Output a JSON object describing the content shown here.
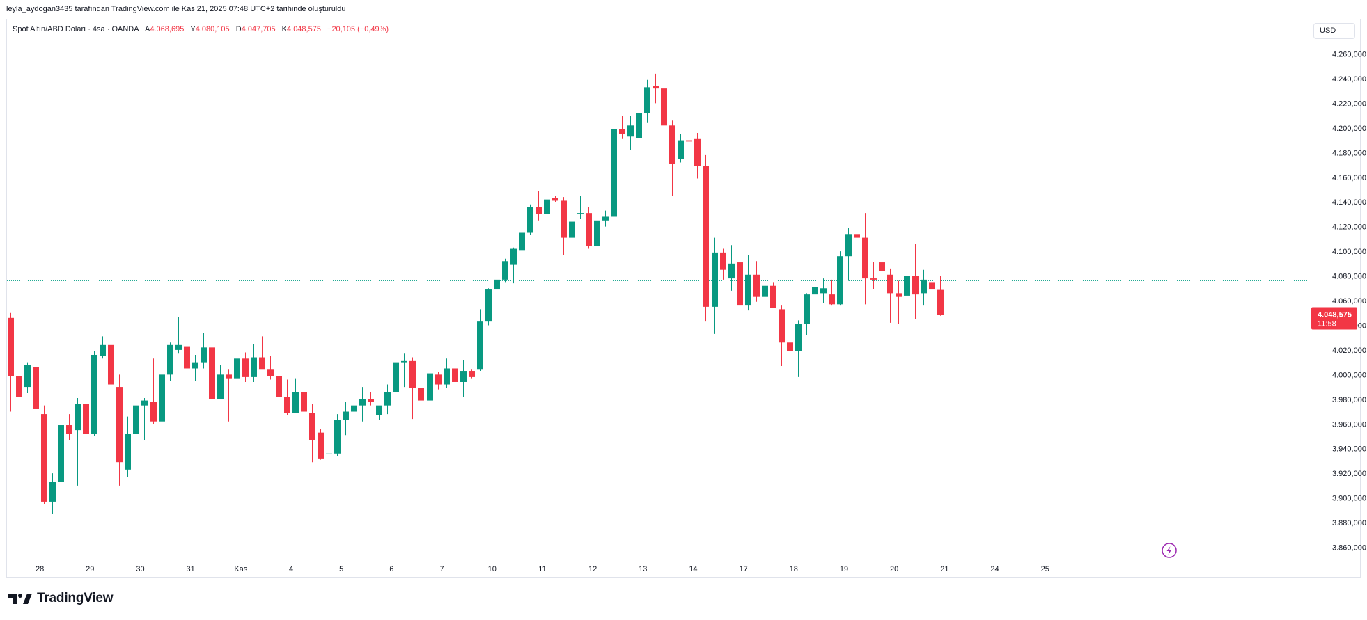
{
  "header": {
    "attribution": "leyla_aydogan3435 tarafından TradingView.com ile Kas 21, 2025 07:48 UTC+2 tarihinde oluşturuldu"
  },
  "legend": {
    "symbol": "Spot Altın/ABD Doları · 4sa · OANDA",
    "open_label": "A",
    "open_value": "4.068,695",
    "high_label": "Y",
    "high_value": "4.080,105",
    "low_label": "D",
    "low_value": "4.047,705",
    "close_label": "K",
    "close_value": "4.048,575",
    "change": "−20,105 (−0,49%)"
  },
  "currency": "USD",
  "price_label": {
    "price": "4.048,575",
    "countdown": "11:58"
  },
  "brand": {
    "name": "TradingView"
  },
  "colors": {
    "up": "#089981",
    "down": "#f23645",
    "reference_line": "#22ab94",
    "grid": "#f0f3fa"
  },
  "chart_data": {
    "type": "candlestick",
    "ylim": [
      3850000,
      4270000
    ],
    "y_ticks": [
      3860000,
      3880000,
      3900000,
      3920000,
      3940000,
      3960000,
      3980000,
      4000000,
      4020000,
      4040000,
      4060000,
      4080000,
      4100000,
      4120000,
      4140000,
      4160000,
      4180000,
      4200000,
      4220000,
      4240000,
      4260000
    ],
    "y_tick_labels": [
      "3.860,000",
      "3.880,000",
      "3.900,000",
      "3.920,000",
      "3.940,000",
      "3.960,000",
      "3.980,000",
      "4.000,000",
      "4.020,000",
      "4.040,000",
      "4.060,000",
      "4.080,000",
      "4.100,000",
      "4.120,000",
      "4.140,000",
      "4.160,000",
      "4.180,000",
      "4.200,000",
      "4.220,000",
      "4.240,000",
      "4.260,000"
    ],
    "x_tick_labels": [
      {
        "label": "28",
        "bar": 3.5
      },
      {
        "label": "29",
        "bar": 9.5
      },
      {
        "label": "30",
        "bar": 15.5
      },
      {
        "label": "31",
        "bar": 21.5
      },
      {
        "label": "Kas",
        "bar": 27.5
      },
      {
        "label": "4",
        "bar": 33.5
      },
      {
        "label": "5",
        "bar": 39.5
      },
      {
        "label": "6",
        "bar": 45.5
      },
      {
        "label": "7",
        "bar": 51.5
      },
      {
        "label": "10",
        "bar": 57.5
      },
      {
        "label": "11",
        "bar": 63.5
      },
      {
        "label": "12",
        "bar": 69.5
      },
      {
        "label": "13",
        "bar": 75.5
      },
      {
        "label": "14",
        "bar": 81.5
      },
      {
        "label": "17",
        "bar": 87.5
      },
      {
        "label": "18",
        "bar": 93.5
      },
      {
        "label": "19",
        "bar": 99.5
      },
      {
        "label": "20",
        "bar": 105.5
      },
      {
        "label": "21",
        "bar": 111.5
      },
      {
        "label": "24",
        "bar": 117.5
      },
      {
        "label": "25",
        "bar": 123.5
      }
    ],
    "last_price": 4048575,
    "reference_price": 4076200,
    "candles": [
      {
        "o": 4046000,
        "h": 4050000,
        "l": 3970000,
        "c": 3999000
      },
      {
        "o": 3999000,
        "h": 4008000,
        "l": 3975000,
        "c": 3982000
      },
      {
        "o": 3990000,
        "h": 4010000,
        "l": 3985000,
        "c": 4008000
      },
      {
        "o": 4006000,
        "h": 4019000,
        "l": 3965000,
        "c": 3972000
      },
      {
        "o": 3968000,
        "h": 3975000,
        "l": 3895000,
        "c": 3897000
      },
      {
        "o": 3897000,
        "h": 3920000,
        "l": 3887000,
        "c": 3913000
      },
      {
        "o": 3913000,
        "h": 3966000,
        "l": 3912000,
        "c": 3959000
      },
      {
        "o": 3959000,
        "h": 3968000,
        "l": 3947000,
        "c": 3952000
      },
      {
        "o": 3955000,
        "h": 3981000,
        "l": 3910000,
        "c": 3976000
      },
      {
        "o": 3976000,
        "h": 3981000,
        "l": 3946000,
        "c": 3952000
      },
      {
        "o": 3952000,
        "h": 4019000,
        "l": 3950000,
        "c": 4016000
      },
      {
        "o": 4015000,
        "h": 4031000,
        "l": 4013000,
        "c": 4024000
      },
      {
        "o": 4024000,
        "h": 4025000,
        "l": 3990000,
        "c": 3992000
      },
      {
        "o": 3990000,
        "h": 4000000,
        "l": 3910000,
        "c": 3929000
      },
      {
        "o": 3923000,
        "h": 3966000,
        "l": 3917000,
        "c": 3952000
      },
      {
        "o": 3952000,
        "h": 3987000,
        "l": 3945000,
        "c": 3975000
      },
      {
        "o": 3975000,
        "h": 3981000,
        "l": 3947000,
        "c": 3979000
      },
      {
        "o": 3978000,
        "h": 4013000,
        "l": 3960000,
        "c": 3962000
      },
      {
        "o": 3962000,
        "h": 4004000,
        "l": 3960000,
        "c": 4000000
      },
      {
        "o": 4000000,
        "h": 4026000,
        "l": 3995000,
        "c": 4024000
      },
      {
        "o": 4020000,
        "h": 4047000,
        "l": 4017000,
        "c": 4024000
      },
      {
        "o": 4023000,
        "h": 4039000,
        "l": 3990000,
        "c": 4005000
      },
      {
        "o": 4005000,
        "h": 4016000,
        "l": 3995000,
        "c": 4010000
      },
      {
        "o": 4010000,
        "h": 4034000,
        "l": 4005000,
        "c": 4022000
      },
      {
        "o": 4022000,
        "h": 4034000,
        "l": 3970000,
        "c": 3980000
      },
      {
        "o": 3980000,
        "h": 4008000,
        "l": 3980000,
        "c": 4000000
      },
      {
        "o": 4000000,
        "h": 4004000,
        "l": 3962000,
        "c": 3997000
      },
      {
        "o": 3997000,
        "h": 4018000,
        "l": 3997000,
        "c": 4013000
      },
      {
        "o": 4013000,
        "h": 4018000,
        "l": 3994000,
        "c": 3998000
      },
      {
        "o": 3998000,
        "h": 4025000,
        "l": 3994000,
        "c": 4014000
      },
      {
        "o": 4014000,
        "h": 4031000,
        "l": 4006000,
        "c": 4004000
      },
      {
        "o": 4004000,
        "h": 4015000,
        "l": 3996000,
        "c": 3999000
      },
      {
        "o": 3999000,
        "h": 4009000,
        "l": 3980000,
        "c": 3982000
      },
      {
        "o": 3982000,
        "h": 3996000,
        "l": 3967000,
        "c": 3969000
      },
      {
        "o": 3969000,
        "h": 3997000,
        "l": 3969000,
        "c": 3986000
      },
      {
        "o": 3986000,
        "h": 3998000,
        "l": 3970000,
        "c": 3970000
      },
      {
        "o": 3969000,
        "h": 3976000,
        "l": 3929000,
        "c": 3947000
      },
      {
        "o": 3953000,
        "h": 3956000,
        "l": 3931000,
        "c": 3932000
      },
      {
        "o": 3936000,
        "h": 3942000,
        "l": 3930000,
        "c": 3936000
      },
      {
        "o": 3936000,
        "h": 3968000,
        "l": 3934000,
        "c": 3963000
      },
      {
        "o": 3963000,
        "h": 3978000,
        "l": 3951000,
        "c": 3970000
      },
      {
        "o": 3970000,
        "h": 3980000,
        "l": 3955000,
        "c": 3975000
      },
      {
        "o": 3975000,
        "h": 3990000,
        "l": 3962000,
        "c": 3980000
      },
      {
        "o": 3980000,
        "h": 3986000,
        "l": 3975000,
        "c": 3978000
      },
      {
        "o": 3967000,
        "h": 3972000,
        "l": 3963000,
        "c": 3975000
      },
      {
        "o": 3975000,
        "h": 3992000,
        "l": 3968000,
        "c": 3986000
      },
      {
        "o": 3986000,
        "h": 4012000,
        "l": 3985000,
        "c": 4010000
      },
      {
        "o": 4010000,
        "h": 4017000,
        "l": 3990000,
        "c": 4011000
      },
      {
        "o": 4011000,
        "h": 4014000,
        "l": 3964000,
        "c": 3989000
      },
      {
        "o": 3989000,
        "h": 3991000,
        "l": 3978000,
        "c": 3979000
      },
      {
        "o": 3979000,
        "h": 4000000,
        "l": 3979000,
        "c": 4001000
      },
      {
        "o": 4000000,
        "h": 4002000,
        "l": 3988000,
        "c": 3992000
      },
      {
        "o": 3992000,
        "h": 4013000,
        "l": 3989000,
        "c": 4005000
      },
      {
        "o": 4005000,
        "h": 4015000,
        "l": 3994000,
        "c": 3994000
      },
      {
        "o": 3994000,
        "h": 4012000,
        "l": 3982000,
        "c": 4003000
      },
      {
        "o": 4003000,
        "h": 4004000,
        "l": 3997000,
        "c": 3998000
      },
      {
        "o": 4004000,
        "h": 4053000,
        "l": 4003000,
        "c": 4043000
      },
      {
        "o": 4043000,
        "h": 4070000,
        "l": 4040000,
        "c": 4069000
      },
      {
        "o": 4069000,
        "h": 4077000,
        "l": 4067000,
        "c": 4077000
      },
      {
        "o": 4077000,
        "h": 4094000,
        "l": 4075000,
        "c": 4092000
      },
      {
        "o": 4089000,
        "h": 4103000,
        "l": 4074000,
        "c": 4102000
      },
      {
        "o": 4101000,
        "h": 4120000,
        "l": 4100000,
        "c": 4115000
      },
      {
        "o": 4115000,
        "h": 4138000,
        "l": 4113000,
        "c": 4136000
      },
      {
        "o": 4136000,
        "h": 4149000,
        "l": 4125000,
        "c": 4130000
      },
      {
        "o": 4130000,
        "h": 4143000,
        "l": 4127000,
        "c": 4142000
      },
      {
        "o": 4143000,
        "h": 4145000,
        "l": 4140000,
        "c": 4141000
      },
      {
        "o": 4141000,
        "h": 4144000,
        "l": 4097000,
        "c": 4111000
      },
      {
        "o": 4111000,
        "h": 4132000,
        "l": 4109000,
        "c": 4124000
      },
      {
        "o": 4131000,
        "h": 4145000,
        "l": 4126000,
        "c": 4131000
      },
      {
        "o": 4131000,
        "h": 4136000,
        "l": 4102000,
        "c": 4104000
      },
      {
        "o": 4104000,
        "h": 4135000,
        "l": 4102000,
        "c": 4125000
      },
      {
        "o": 4125000,
        "h": 4133000,
        "l": 4120000,
        "c": 4128000
      },
      {
        "o": 4128000,
        "h": 4206000,
        "l": 4124000,
        "c": 4199000
      },
      {
        "o": 4199000,
        "h": 4210000,
        "l": 4191000,
        "c": 4195000
      },
      {
        "o": 4193000,
        "h": 4210000,
        "l": 4182000,
        "c": 4202000
      },
      {
        "o": 4192000,
        "h": 4219000,
        "l": 4185000,
        "c": 4212000
      },
      {
        "o": 4212000,
        "h": 4239000,
        "l": 4204000,
        "c": 4233000
      },
      {
        "o": 4234000,
        "h": 4244000,
        "l": 4220000,
        "c": 4232000
      },
      {
        "o": 4232000,
        "h": 4234000,
        "l": 4194000,
        "c": 4202000
      },
      {
        "o": 4202000,
        "h": 4206000,
        "l": 4145000,
        "c": 4171000
      },
      {
        "o": 4175000,
        "h": 4195000,
        "l": 4172000,
        "c": 4190000
      },
      {
        "o": 4190000,
        "h": 4211000,
        "l": 4181000,
        "c": 4189000
      },
      {
        "o": 4191000,
        "h": 4196000,
        "l": 4159000,
        "c": 4169000
      },
      {
        "o": 4169000,
        "h": 4178000,
        "l": 4043000,
        "c": 4055000
      },
      {
        "o": 4055000,
        "h": 4111000,
        "l": 4033000,
        "c": 4099000
      },
      {
        "o": 4099000,
        "h": 4102000,
        "l": 4077000,
        "c": 4085000
      },
      {
        "o": 4078000,
        "h": 4105000,
        "l": 4068000,
        "c": 4090000
      },
      {
        "o": 4091000,
        "h": 4093000,
        "l": 4049000,
        "c": 4056000
      },
      {
        "o": 4056000,
        "h": 4097000,
        "l": 4052000,
        "c": 4081000
      },
      {
        "o": 4081000,
        "h": 4092000,
        "l": 4059000,
        "c": 4063000
      },
      {
        "o": 4063000,
        "h": 4084000,
        "l": 4052000,
        "c": 4072000
      },
      {
        "o": 4072000,
        "h": 4075000,
        "l": 4055000,
        "c": 4054000
      },
      {
        "o": 4053000,
        "h": 4056000,
        "l": 4007000,
        "c": 4026000
      },
      {
        "o": 4026000,
        "h": 4034000,
        "l": 4006000,
        "c": 4019000
      },
      {
        "o": 4019000,
        "h": 4044000,
        "l": 3998000,
        "c": 4041000
      },
      {
        "o": 4041000,
        "h": 4066000,
        "l": 4032000,
        "c": 4065000
      },
      {
        "o": 4065000,
        "h": 4080000,
        "l": 4044000,
        "c": 4071000
      },
      {
        "o": 4066000,
        "h": 4078000,
        "l": 4058000,
        "c": 4070000
      },
      {
        "o": 4065000,
        "h": 4077000,
        "l": 4056000,
        "c": 4057000
      },
      {
        "o": 4057000,
        "h": 4100000,
        "l": 4056000,
        "c": 4096000
      },
      {
        "o": 4096000,
        "h": 4119000,
        "l": 4076000,
        "c": 4114000
      },
      {
        "o": 4114000,
        "h": 4121000,
        "l": 4110000,
        "c": 4111000
      },
      {
        "o": 4111000,
        "h": 4131000,
        "l": 4057000,
        "c": 4078000
      },
      {
        "o": 4078000,
        "h": 4091000,
        "l": 4069000,
        "c": 4077000
      },
      {
        "o": 4091000,
        "h": 4097000,
        "l": 4071000,
        "c": 4084000
      },
      {
        "o": 4081000,
        "h": 4086000,
        "l": 4042000,
        "c": 4066000
      },
      {
        "o": 4066000,
        "h": 4076000,
        "l": 4041000,
        "c": 4063000
      },
      {
        "o": 4064000,
        "h": 4096000,
        "l": 4054000,
        "c": 4080000
      },
      {
        "o": 4080000,
        "h": 4106000,
        "l": 4045000,
        "c": 4065000
      },
      {
        "o": 4066000,
        "h": 4085000,
        "l": 4056000,
        "c": 4077000
      },
      {
        "o": 4075000,
        "h": 4081000,
        "l": 4065000,
        "c": 4069000
      },
      {
        "o": 4068695,
        "h": 4080105,
        "l": 4047705,
        "c": 4048575
      }
    ]
  }
}
